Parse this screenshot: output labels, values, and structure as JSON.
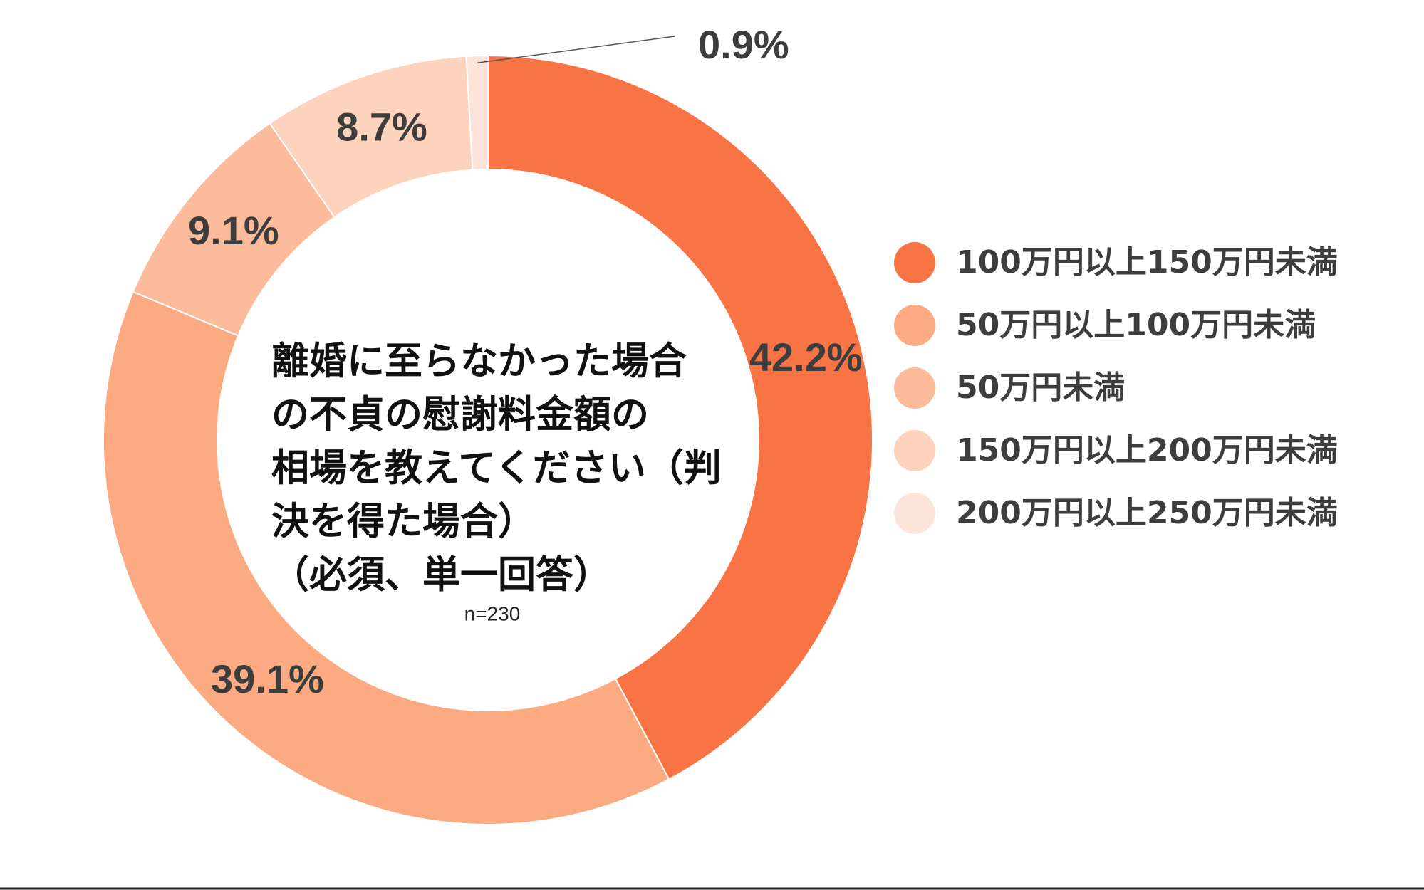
{
  "chart_data": {
    "type": "donut",
    "title": "離婚に至らなかった場合\nの不貞の慰謝料金額の\n相場を教えてください（判\n決を得た場合）\n（必須、単一回答）",
    "note": "n=230",
    "categories": [
      "100万円以上150万円未満",
      "50万円以上100万円未満",
      "50万円未満",
      "150万円以上200万円未満",
      "200万円以上250万円未満"
    ],
    "values": [
      42.2,
      39.1,
      9.1,
      8.7,
      0.9
    ],
    "value_labels": [
      "42.2%",
      "39.1%",
      "9.1%",
      "8.7%",
      "0.9%"
    ],
    "colors": [
      "#f97444",
      "#fbaa82",
      "#fcbc9c",
      "#fdd3bd",
      "#fde4da"
    ],
    "legend": "right"
  }
}
